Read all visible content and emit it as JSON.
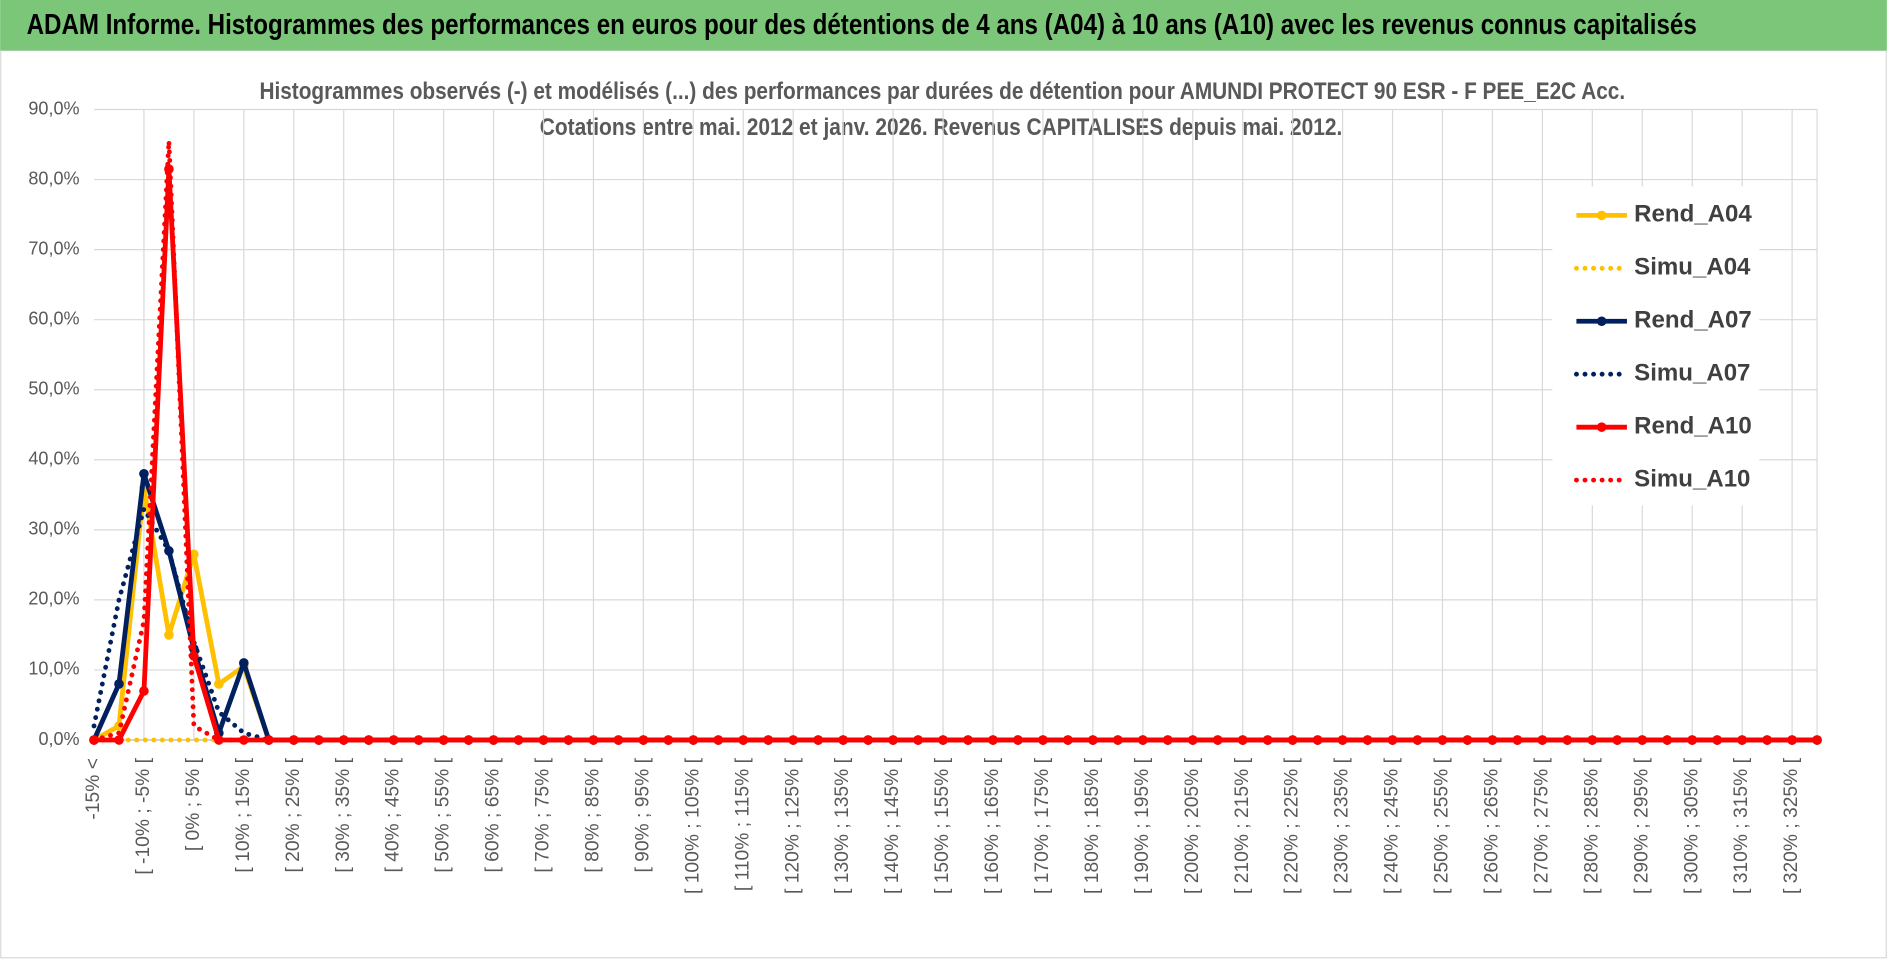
{
  "header": {
    "title": "ADAM Informe. Histogrammes des performances en euros pour des détentions de 4 ans (A04) à 10 ans (A10) avec les revenus connus capitalisés"
  },
  "chart_data": {
    "type": "line",
    "title": [
      "Histogrammes observés (-) et modélisés (...) des performances par durées de détention pour AMUNDI PROTECT 90 ESR - F PEE_E2C Acc.",
      "Cotations entre mai. 2012 et janv. 2026. Revenus CAPITALISES depuis mai. 2012."
    ],
    "categories": [
      "-15% <",
      null,
      "[ -10% ; -5% [",
      null,
      "[ 0% ; 5% [",
      null,
      "[ 10% ; 15% [",
      null,
      "[ 20% ; 25% [",
      null,
      "[ 30% ; 35% [",
      null,
      "[ 40% ; 45% [",
      null,
      "[ 50% ; 55% [",
      null,
      "[ 60% ; 65% [",
      null,
      "[ 70% ; 75% [",
      null,
      "[ 80% ; 85% [",
      null,
      "[ 90% ; 95% [",
      null,
      "[ 100% ; 105% [",
      null,
      "[ 110% ; 115% [",
      null,
      "[ 120% ; 125% [",
      null,
      "[ 130% ; 135% [",
      null,
      "[ 140% ; 145% [",
      null,
      "[ 150% ; 155% [",
      null,
      "[ 160% ; 165% [",
      null,
      "[ 170% ; 175% [",
      null,
      "[ 180% ; 185% [",
      null,
      "[ 190% ; 195% [",
      null,
      "[ 200% ; 205% [",
      null,
      "[ 210% ; 215% [",
      null,
      "[ 220% ; 225% [",
      null,
      "[ 230% ; 235% [",
      null,
      "[ 240% ; 245% [",
      null,
      "[ 250% ; 255% [",
      null,
      "[ 260% ; 265% [",
      null,
      "[ 270% ; 275% [",
      null,
      "[ 280% ; 285% [",
      null,
      "[ 290% ; 295% [",
      null,
      "[ 300% ; 305% [",
      null,
      "[ 310% ; 315% [",
      null,
      "[ 320% ; 325% [",
      null
    ],
    "series": [
      {
        "name": "Rend_A04",
        "color": "#ffc000",
        "style": "solid",
        "markers": true,
        "values": [
          0,
          2,
          36,
          15,
          26.5,
          8,
          10.5,
          0,
          0,
          0,
          0,
          0,
          0,
          0,
          0,
          0,
          0,
          0,
          0,
          0,
          0,
          0,
          0,
          0,
          0,
          0,
          0,
          0,
          0,
          0,
          0,
          0,
          0,
          0,
          0,
          0,
          0,
          0,
          0,
          0,
          0,
          0,
          0,
          0,
          0,
          0,
          0,
          0,
          0,
          0,
          0,
          0,
          0,
          0,
          0,
          0,
          0,
          0,
          0,
          0,
          0,
          0,
          0,
          0,
          0,
          0,
          0,
          0,
          0,
          0
        ]
      },
      {
        "name": "Simu_A04",
        "color": "#ffc000",
        "style": "dotted",
        "markers": false,
        "values": [
          0,
          0,
          0,
          0,
          0,
          0,
          0,
          0,
          0,
          0,
          0,
          0,
          0,
          0,
          0,
          0,
          0,
          0,
          0,
          0,
          0,
          0,
          0,
          0,
          0,
          0,
          0,
          0,
          0,
          0,
          0,
          0,
          0,
          0,
          0,
          0,
          0,
          0,
          0,
          0,
          0,
          0,
          0,
          0,
          0,
          0,
          0,
          0,
          0,
          0,
          0,
          0,
          0,
          0,
          0,
          0,
          0,
          0,
          0,
          0,
          0,
          0,
          0,
          0,
          0,
          0,
          0,
          0,
          0,
          0
        ]
      },
      {
        "name": "Rend_A07",
        "color": "#002060",
        "style": "solid",
        "markers": true,
        "values": [
          0,
          8,
          38,
          27,
          13,
          1,
          11,
          0,
          0,
          0,
          0,
          0,
          0,
          0,
          0,
          0,
          0,
          0,
          0,
          0,
          0,
          0,
          0,
          0,
          0,
          0,
          0,
          0,
          0,
          0,
          0,
          0,
          0,
          0,
          0,
          0,
          0,
          0,
          0,
          0,
          0,
          0,
          0,
          0,
          0,
          0,
          0,
          0,
          0,
          0,
          0,
          0,
          0,
          0,
          0,
          0,
          0,
          0,
          0,
          0,
          0,
          0,
          0,
          0,
          0,
          0,
          0,
          0,
          0,
          0
        ]
      },
      {
        "name": "Simu_A07",
        "color": "#002060",
        "style": "dotted",
        "markers": false,
        "values": [
          2,
          20,
          33,
          27,
          14,
          4,
          1,
          0,
          0,
          0,
          0,
          0,
          0,
          0,
          0,
          0,
          0,
          0,
          0,
          0,
          0,
          0,
          0,
          0,
          0,
          0,
          0,
          0,
          0,
          0,
          0,
          0,
          0,
          0,
          0,
          0,
          0,
          0,
          0,
          0,
          0,
          0,
          0,
          0,
          0,
          0,
          0,
          0,
          0,
          0,
          0,
          0,
          0,
          0,
          0,
          0,
          0,
          0,
          0,
          0,
          0,
          0,
          0,
          0,
          0,
          0,
          0,
          0,
          0,
          0
        ]
      },
      {
        "name": "Rend_A10",
        "color": "#ff0000",
        "style": "solid",
        "markers": true,
        "values": [
          0,
          0,
          7,
          81.5,
          12,
          0,
          0,
          0,
          0,
          0,
          0,
          0,
          0,
          0,
          0,
          0,
          0,
          0,
          0,
          0,
          0,
          0,
          0,
          0,
          0,
          0,
          0,
          0,
          0,
          0,
          0,
          0,
          0,
          0,
          0,
          0,
          0,
          0,
          0,
          0,
          0,
          0,
          0,
          0,
          0,
          0,
          0,
          0,
          0,
          0,
          0,
          0,
          0,
          0,
          0,
          0,
          0,
          0,
          0,
          0,
          0,
          0,
          0,
          0,
          0,
          0,
          0,
          0,
          0,
          0
        ]
      },
      {
        "name": "Simu_A10",
        "color": "#ff0000",
        "style": "dotted",
        "markers": false,
        "values": [
          0,
          1,
          17,
          85.5,
          2,
          0,
          0,
          0,
          0,
          0,
          0,
          0,
          0,
          0,
          0,
          0,
          0,
          0,
          0,
          0,
          0,
          0,
          0,
          0,
          0,
          0,
          0,
          0,
          0,
          0,
          0,
          0,
          0,
          0,
          0,
          0,
          0,
          0,
          0,
          0,
          0,
          0,
          0,
          0,
          0,
          0,
          0,
          0,
          0,
          0,
          0,
          0,
          0,
          0,
          0,
          0,
          0,
          0,
          0,
          0,
          0,
          0,
          0,
          0,
          0,
          0,
          0,
          0,
          0,
          0
        ]
      }
    ],
    "ylim": [
      0,
      90
    ],
    "yticks": [
      {
        "value": 0,
        "label": "0,0%"
      },
      {
        "value": 10,
        "label": "10,0%"
      },
      {
        "value": 20,
        "label": "20,0%"
      },
      {
        "value": 30,
        "label": "30,0%"
      },
      {
        "value": 40,
        "label": "40,0%"
      },
      {
        "value": 50,
        "label": "50,0%"
      },
      {
        "value": 60,
        "label": "60,0%"
      },
      {
        "value": 70,
        "label": "70,0%"
      },
      {
        "value": 80,
        "label": "80,0%"
      },
      {
        "value": 90,
        "label": "90,0%"
      }
    ],
    "grid": true,
    "legend": "right"
  }
}
